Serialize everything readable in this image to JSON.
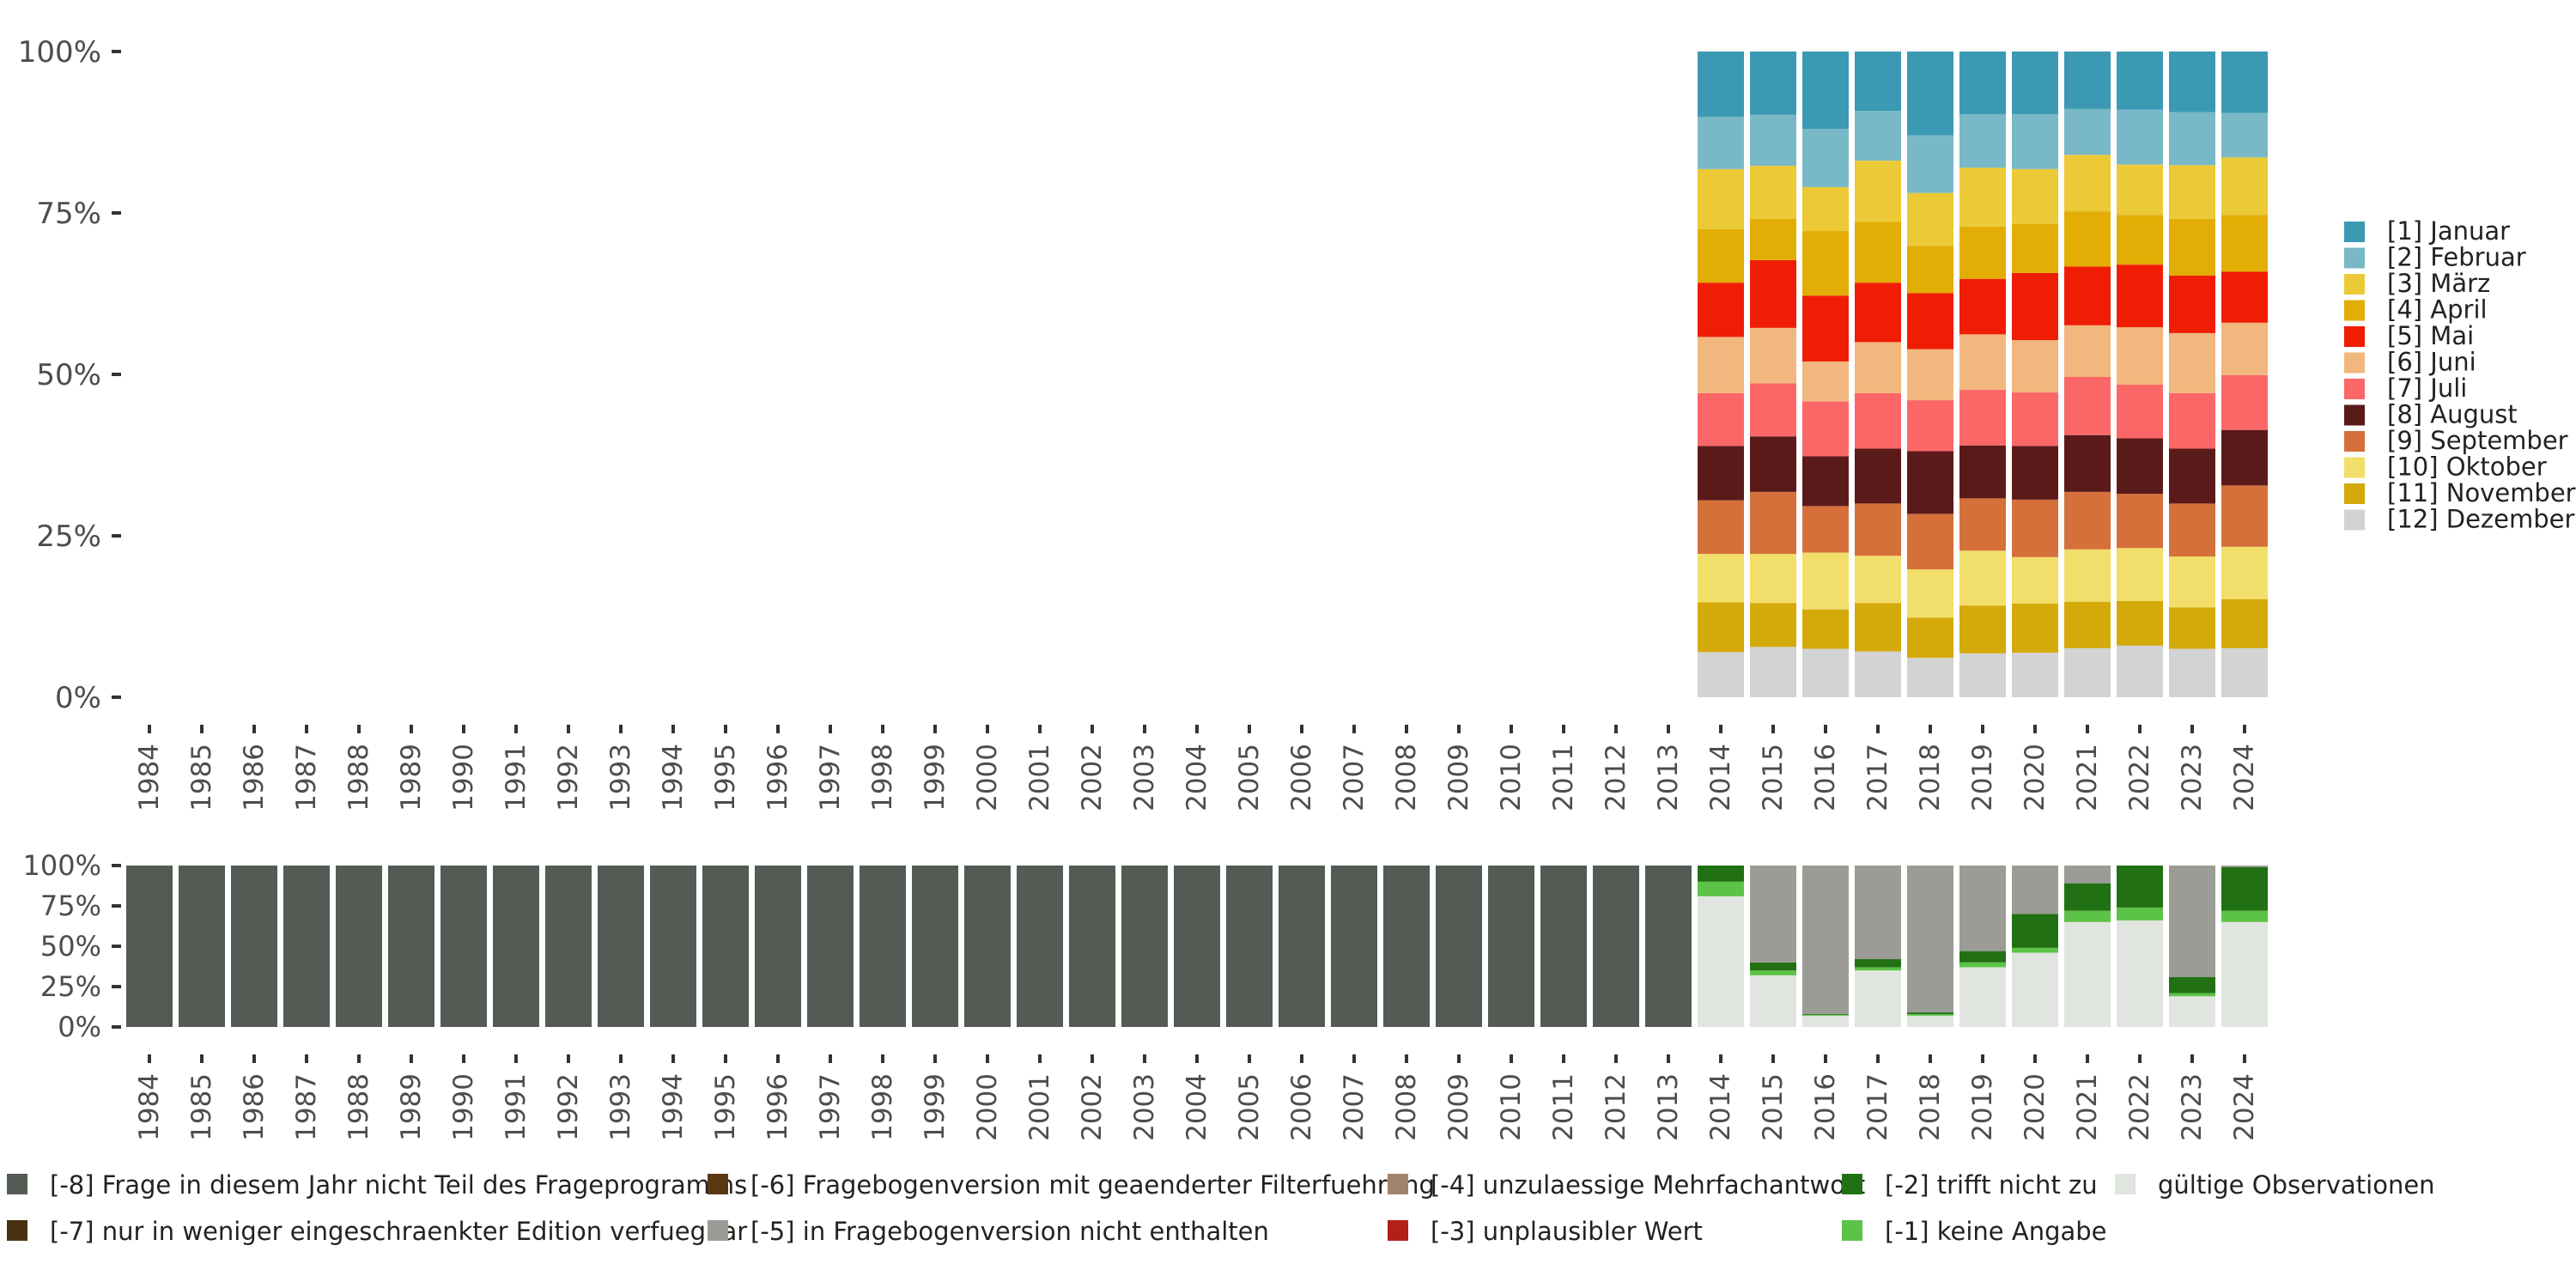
{
  "chart_data": [
    {
      "type": "bar",
      "stacked": true,
      "normalized": true,
      "title": "",
      "xlabel": "",
      "ylabel": "",
      "ylim": [
        0,
        100
      ],
      "y_ticks": [
        "0%",
        "25%",
        "50%",
        "75%",
        "100%"
      ],
      "categories": [
        "1984",
        "1985",
        "1986",
        "1987",
        "1988",
        "1989",
        "1990",
        "1991",
        "1992",
        "1993",
        "1994",
        "1995",
        "1996",
        "1997",
        "1998",
        "1999",
        "2000",
        "2001",
        "2002",
        "2003",
        "2004",
        "2005",
        "2006",
        "2007",
        "2008",
        "2009",
        "2010",
        "2011",
        "2012",
        "2013",
        "2014",
        "2015",
        "2016",
        "2017",
        "2018",
        "2019",
        "2020",
        "2021",
        "2022",
        "2023",
        "2024"
      ],
      "legend_position": "right",
      "series": [
        {
          "name": "[12] Dezember",
          "color": "#d3d3d3",
          "values": [
            null,
            null,
            null,
            null,
            null,
            null,
            null,
            null,
            null,
            null,
            null,
            null,
            null,
            null,
            null,
            null,
            null,
            null,
            null,
            null,
            null,
            null,
            null,
            null,
            null,
            null,
            null,
            null,
            null,
            null,
            7.0,
            7.8,
            7.5,
            7.1,
            6.1,
            6.8,
            6.9,
            7.6,
            8.0,
            7.5,
            7.6
          ]
        },
        {
          "name": "[11] November",
          "color": "#d4a90a",
          "values": [
            null,
            null,
            null,
            null,
            null,
            null,
            null,
            null,
            null,
            null,
            null,
            null,
            null,
            null,
            null,
            null,
            null,
            null,
            null,
            null,
            null,
            null,
            null,
            null,
            null,
            null,
            null,
            null,
            null,
            null,
            7.7,
            6.8,
            6.1,
            7.5,
            6.2,
            7.4,
            7.6,
            7.2,
            6.9,
            6.4,
            7.6
          ]
        },
        {
          "name": "[10] Oktober",
          "color": "#f2de6a",
          "values": [
            null,
            null,
            null,
            null,
            null,
            null,
            null,
            null,
            null,
            null,
            null,
            null,
            null,
            null,
            null,
            null,
            null,
            null,
            null,
            null,
            null,
            null,
            null,
            null,
            null,
            null,
            null,
            null,
            null,
            null,
            7.5,
            7.6,
            8.8,
            7.3,
            7.5,
            8.5,
            7.2,
            8.1,
            8.2,
            7.9,
            8.1
          ]
        },
        {
          "name": "[9] September",
          "color": "#d5703a",
          "values": [
            null,
            null,
            null,
            null,
            null,
            null,
            null,
            null,
            null,
            null,
            null,
            null,
            null,
            null,
            null,
            null,
            null,
            null,
            null,
            null,
            null,
            null,
            null,
            null,
            null,
            null,
            null,
            null,
            null,
            null,
            8.3,
            9.6,
            7.2,
            8.1,
            8.6,
            8.1,
            8.9,
            8.9,
            8.4,
            8.2,
            9.5
          ]
        },
        {
          "name": "[8] August",
          "color": "#5b1a1a",
          "values": [
            null,
            null,
            null,
            null,
            null,
            null,
            null,
            null,
            null,
            null,
            null,
            null,
            null,
            null,
            null,
            null,
            null,
            null,
            null,
            null,
            null,
            null,
            null,
            null,
            null,
            null,
            null,
            null,
            null,
            null,
            8.4,
            8.6,
            7.7,
            8.5,
            9.7,
            8.2,
            8.3,
            8.8,
            8.6,
            8.5,
            8.6
          ]
        },
        {
          "name": "[7] Juli",
          "color": "#fb6767",
          "values": [
            null,
            null,
            null,
            null,
            null,
            null,
            null,
            null,
            null,
            null,
            null,
            null,
            null,
            null,
            null,
            null,
            null,
            null,
            null,
            null,
            null,
            null,
            null,
            null,
            null,
            null,
            null,
            null,
            null,
            null,
            8.2,
            8.2,
            8.5,
            8.6,
            7.9,
            8.6,
            8.3,
            9.0,
            8.3,
            8.6,
            8.5
          ]
        },
        {
          "name": "[6] Juni",
          "color": "#f2b77e",
          "values": [
            null,
            null,
            null,
            null,
            null,
            null,
            null,
            null,
            null,
            null,
            null,
            null,
            null,
            null,
            null,
            null,
            null,
            null,
            null,
            null,
            null,
            null,
            null,
            null,
            null,
            null,
            null,
            null,
            null,
            null,
            8.7,
            8.6,
            6.2,
            7.9,
            7.9,
            8.6,
            8.1,
            8.0,
            8.9,
            9.3,
            8.1
          ]
        },
        {
          "name": "[5] Mai",
          "color": "#f01d05",
          "values": [
            null,
            null,
            null,
            null,
            null,
            null,
            null,
            null,
            null,
            null,
            null,
            null,
            null,
            null,
            null,
            null,
            null,
            null,
            null,
            null,
            null,
            null,
            null,
            null,
            null,
            null,
            null,
            null,
            null,
            null,
            8.4,
            10.5,
            10.2,
            9.2,
            8.7,
            8.6,
            10.4,
            9.1,
            9.7,
            8.9,
            7.9
          ]
        },
        {
          "name": "[4] April",
          "color": "#e2ad04",
          "values": [
            null,
            null,
            null,
            null,
            null,
            null,
            null,
            null,
            null,
            null,
            null,
            null,
            null,
            null,
            null,
            null,
            null,
            null,
            null,
            null,
            null,
            null,
            null,
            null,
            null,
            null,
            null,
            null,
            null,
            null,
            8.3,
            6.4,
            10.0,
            9.4,
            7.3,
            8.1,
            7.6,
            8.5,
            7.7,
            8.8,
            8.8
          ]
        },
        {
          "name": "[3] März",
          "color": "#ecc936",
          "values": [
            null,
            null,
            null,
            null,
            null,
            null,
            null,
            null,
            null,
            null,
            null,
            null,
            null,
            null,
            null,
            null,
            null,
            null,
            null,
            null,
            null,
            null,
            null,
            null,
            null,
            null,
            null,
            null,
            null,
            null,
            9.3,
            8.2,
            6.8,
            9.5,
            8.2,
            9.1,
            8.5,
            8.8,
            7.8,
            8.3,
            8.9
          ]
        },
        {
          "name": "[2] Februar",
          "color": "#79b8c7",
          "values": [
            null,
            null,
            null,
            null,
            null,
            null,
            null,
            null,
            null,
            null,
            null,
            null,
            null,
            null,
            null,
            null,
            null,
            null,
            null,
            null,
            null,
            null,
            null,
            null,
            null,
            null,
            null,
            null,
            null,
            null,
            8.1,
            7.9,
            9.0,
            7.7,
            8.9,
            8.3,
            8.5,
            7.1,
            8.5,
            8.2,
            6.9
          ]
        },
        {
          "name": "[1] Januar",
          "color": "#3b99b3",
          "values": [
            null,
            null,
            null,
            null,
            null,
            null,
            null,
            null,
            null,
            null,
            null,
            null,
            null,
            null,
            null,
            null,
            null,
            null,
            null,
            null,
            null,
            null,
            null,
            null,
            null,
            null,
            null,
            null,
            null,
            null,
            10.1,
            9.8,
            12.0,
            9.2,
            13.0,
            9.7,
            9.7,
            8.9,
            9.0,
            9.4,
            9.5
          ]
        }
      ],
      "legend_order": [
        "[1] Januar",
        "[2] Februar",
        "[3] März",
        "[4] April",
        "[5] Mai",
        "[6] Juni",
        "[7] Juli",
        "[8] August",
        "[9] September",
        "[10] Oktober",
        "[11] November",
        "[12] Dezember"
      ]
    },
    {
      "type": "bar",
      "stacked": true,
      "normalized": true,
      "title": "",
      "xlabel": "",
      "ylabel": "",
      "ylim": [
        0,
        100
      ],
      "y_ticks": [
        "0%",
        "25%",
        "50%",
        "75%",
        "100%"
      ],
      "categories": [
        "1984",
        "1985",
        "1986",
        "1987",
        "1988",
        "1989",
        "1990",
        "1991",
        "1992",
        "1993",
        "1994",
        "1995",
        "1996",
        "1997",
        "1998",
        "1999",
        "2000",
        "2001",
        "2002",
        "2003",
        "2004",
        "2005",
        "2006",
        "2007",
        "2008",
        "2009",
        "2010",
        "2011",
        "2012",
        "2013",
        "2014",
        "2015",
        "2016",
        "2017",
        "2018",
        "2019",
        "2020",
        "2021",
        "2022",
        "2023",
        "2024"
      ],
      "legend_position": "bottom",
      "series": [
        {
          "name": "gültige Observationen",
          "color": "#e1e5e0",
          "values": [
            0,
            0,
            0,
            0,
            0,
            0,
            0,
            0,
            0,
            0,
            0,
            0,
            0,
            0,
            0,
            0,
            0,
            0,
            0,
            0,
            0,
            0,
            0,
            0,
            0,
            0,
            0,
            0,
            0,
            0,
            81,
            32,
            7,
            35,
            7,
            37,
            46,
            65,
            66,
            19,
            65
          ]
        },
        {
          "name": "[-1] keine Angabe",
          "color": "#5cc248",
          "values": [
            0,
            0,
            0,
            0,
            0,
            0,
            0,
            0,
            0,
            0,
            0,
            0,
            0,
            0,
            0,
            0,
            0,
            0,
            0,
            0,
            0,
            0,
            0,
            0,
            0,
            0,
            0,
            0,
            0,
            0,
            9,
            3,
            0.5,
            2,
            1,
            3,
            3,
            7,
            8,
            2,
            7
          ]
        },
        {
          "name": "[-2] trifft nicht zu",
          "color": "#217014",
          "values": [
            0,
            0,
            0,
            0,
            0,
            0,
            0,
            0,
            0,
            0,
            0,
            0,
            0,
            0,
            0,
            0,
            0,
            0,
            0,
            0,
            0,
            0,
            0,
            0,
            0,
            0,
            0,
            0,
            0,
            0,
            10,
            5,
            0.5,
            5,
            1,
            7,
            21,
            17,
            26,
            10,
            27
          ]
        },
        {
          "name": "[-3] unplausibler Wert",
          "color": "#b3201a",
          "values": [
            0,
            0,
            0,
            0,
            0,
            0,
            0,
            0,
            0,
            0,
            0,
            0,
            0,
            0,
            0,
            0,
            0,
            0,
            0,
            0,
            0,
            0,
            0,
            0,
            0,
            0,
            0,
            0,
            0,
            0,
            0,
            0,
            0,
            0,
            0,
            0,
            0,
            0,
            0,
            0,
            0
          ]
        },
        {
          "name": "[-4] unzulaessige Mehrfachantwort",
          "color": "#a0826d",
          "values": [
            0,
            0,
            0,
            0,
            0,
            0,
            0,
            0,
            0,
            0,
            0,
            0,
            0,
            0,
            0,
            0,
            0,
            0,
            0,
            0,
            0,
            0,
            0,
            0,
            0,
            0,
            0,
            0,
            0,
            0,
            0,
            0,
            0,
            0,
            0,
            0,
            0,
            0,
            0,
            0,
            0
          ]
        },
        {
          "name": "[-5] in Fragebogenversion nicht enthalten",
          "color": "#9a9c95",
          "values": [
            0,
            0,
            0,
            0,
            0,
            0,
            0,
            0,
            0,
            0,
            0,
            0,
            0,
            0,
            0,
            0,
            0,
            0,
            0,
            0,
            0,
            0,
            0,
            0,
            0,
            0,
            0,
            0,
            0,
            0,
            0,
            60,
            92,
            58,
            91,
            53,
            30,
            11,
            0,
            69,
            1
          ]
        },
        {
          "name": "[-6] Fragebogenversion mit geaenderter Filterfuehrung",
          "color": "#5a3714",
          "values": [
            0,
            0,
            0,
            0,
            0,
            0,
            0,
            0,
            0,
            0,
            0,
            0,
            0,
            0,
            0,
            0,
            0,
            0,
            0,
            0,
            0,
            0,
            0,
            0,
            0,
            0,
            0,
            0,
            0,
            0,
            0,
            0,
            0,
            0,
            0,
            0,
            0,
            0,
            0,
            0,
            0
          ]
        },
        {
          "name": "[-7] nur in weniger eingeschraenkter Edition verfuegbar",
          "color": "#4a3012",
          "values": [
            0,
            0,
            0,
            0,
            0,
            0,
            0,
            0,
            0,
            0,
            0,
            0,
            0,
            0,
            0,
            0,
            0,
            0,
            0,
            0,
            0,
            0,
            0,
            0,
            0,
            0,
            0,
            0,
            0,
            0,
            0,
            0,
            0,
            0,
            0,
            0,
            0,
            0,
            0,
            0,
            0
          ]
        },
        {
          "name": "[-8] Frage in diesem Jahr nicht Teil des Frageprogramms",
          "color": "#545a54",
          "values": [
            100,
            100,
            100,
            100,
            100,
            100,
            100,
            100,
            100,
            100,
            100,
            100,
            100,
            100,
            100,
            100,
            100,
            100,
            100,
            100,
            100,
            100,
            100,
            100,
            100,
            100,
            100,
            100,
            100,
            100,
            0,
            0,
            0,
            0,
            0,
            0,
            0,
            0,
            0,
            0,
            0
          ]
        }
      ],
      "legend_order": [
        "[-8] Frage in diesem Jahr nicht Teil des Frageprogramms",
        "[-7] nur in weniger eingeschraenkter Edition verfuegbar",
        "[-6] Fragebogenversion mit geaenderter Filterfuehrung",
        "[-5] in Fragebogenversion nicht enthalten",
        "[-4] unzulaessige Mehrfachantwort",
        "[-3] unplausibler Wert",
        "[-2] trifft nicht zu",
        "[-1] keine Angabe",
        "gültige Observationen"
      ]
    }
  ]
}
